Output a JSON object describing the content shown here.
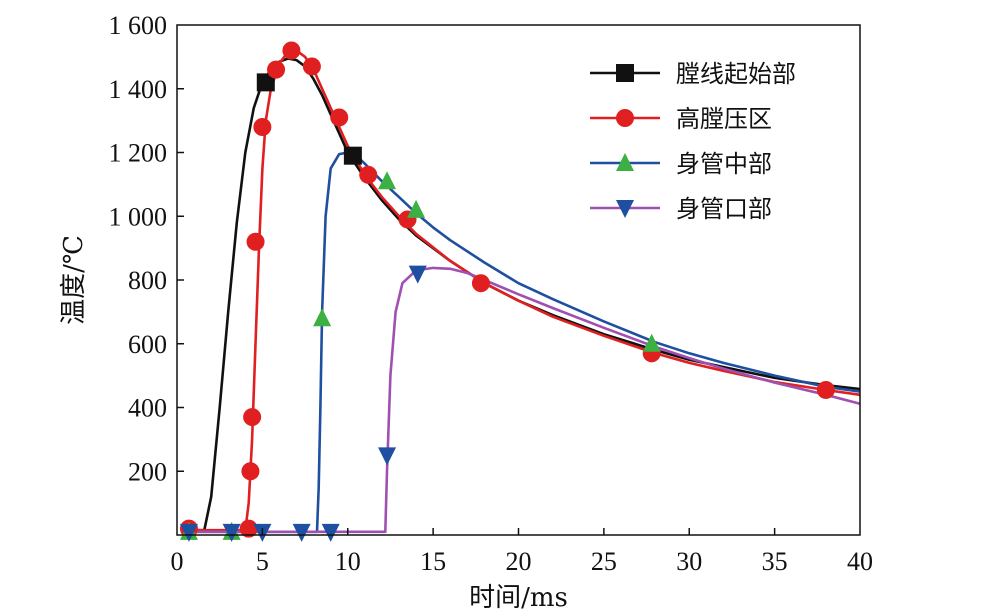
{
  "chart_data": {
    "type": "line",
    "xlabel": "时间/ms",
    "ylabel": "温度/℃",
    "xlim": [
      0,
      40
    ],
    "ylim": [
      0,
      1600
    ],
    "x_ticks": [
      0,
      5,
      10,
      15,
      20,
      25,
      30,
      35,
      40
    ],
    "x_tick_labels": [
      "0",
      "5",
      "10",
      "15",
      "20",
      "25",
      "30",
      "35",
      "40"
    ],
    "y_ticks": [
      200,
      400,
      600,
      800,
      1000,
      1200,
      1400,
      1600
    ],
    "y_tick_labels": [
      "200",
      "400",
      "600",
      "800",
      "1 000",
      "1 200",
      "1 400",
      "1 600"
    ],
    "legend_position": "top-right",
    "grid": false,
    "series": [
      {
        "name": "膛线起始部",
        "color": "#111111",
        "marker": "square",
        "curve": [
          [
            0.5,
            15
          ],
          [
            1.6,
            15
          ],
          [
            2.0,
            120
          ],
          [
            2.5,
            400
          ],
          [
            3.0,
            700
          ],
          [
            3.5,
            980
          ],
          [
            4.0,
            1200
          ],
          [
            4.5,
            1340
          ],
          [
            5.0,
            1420
          ],
          [
            5.5,
            1460
          ],
          [
            6.0,
            1485
          ],
          [
            6.5,
            1495
          ],
          [
            7.0,
            1490
          ],
          [
            7.5,
            1470
          ],
          [
            8.0,
            1430
          ],
          [
            8.5,
            1380
          ],
          [
            9.0,
            1320
          ],
          [
            9.5,
            1260
          ],
          [
            10.0,
            1200
          ],
          [
            11.0,
            1120
          ],
          [
            12.0,
            1050
          ],
          [
            13.0,
            990
          ],
          [
            14.0,
            940
          ],
          [
            16.0,
            860
          ],
          [
            18.0,
            790
          ],
          [
            20.0,
            735
          ],
          [
            22.0,
            690
          ],
          [
            25.0,
            630
          ],
          [
            28.0,
            580
          ],
          [
            30.0,
            550
          ],
          [
            32.0,
            527
          ],
          [
            35.0,
            493
          ],
          [
            38.0,
            470
          ],
          [
            40.0,
            458
          ]
        ],
        "markers": [
          [
            5.2,
            1420
          ],
          [
            10.3,
            1190
          ]
        ]
      },
      {
        "name": "高膛压区",
        "color": "#e02020",
        "marker": "circle",
        "curve": [
          [
            0.5,
            15
          ],
          [
            4.0,
            15
          ],
          [
            4.2,
            100
          ],
          [
            4.4,
            300
          ],
          [
            4.6,
            600
          ],
          [
            4.8,
            900
          ],
          [
            5.0,
            1150
          ],
          [
            5.2,
            1300
          ],
          [
            5.5,
            1400
          ],
          [
            6.0,
            1480
          ],
          [
            6.5,
            1515
          ],
          [
            7.0,
            1520
          ],
          [
            7.5,
            1500
          ],
          [
            8.0,
            1460
          ],
          [
            8.5,
            1400
          ],
          [
            9.0,
            1340
          ],
          [
            9.5,
            1280
          ],
          [
            10.0,
            1220
          ],
          [
            11.0,
            1130
          ],
          [
            12.0,
            1060
          ],
          [
            13.0,
            1000
          ],
          [
            14.0,
            945
          ],
          [
            16.0,
            860
          ],
          [
            18.0,
            790
          ],
          [
            20.0,
            735
          ],
          [
            22.0,
            685
          ],
          [
            25.0,
            625
          ],
          [
            28.0,
            570
          ],
          [
            30.0,
            540
          ],
          [
            32.0,
            515
          ],
          [
            35.0,
            480
          ],
          [
            38.0,
            455
          ],
          [
            40.0,
            440
          ]
        ],
        "markers": [
          [
            0.7,
            20
          ],
          [
            4.2,
            20
          ],
          [
            4.3,
            200
          ],
          [
            4.4,
            370
          ],
          [
            4.6,
            920
          ],
          [
            5.0,
            1280
          ],
          [
            5.8,
            1460
          ],
          [
            6.7,
            1520
          ],
          [
            7.9,
            1470
          ],
          [
            9.5,
            1310
          ],
          [
            11.2,
            1130
          ],
          [
            13.5,
            990
          ],
          [
            17.8,
            790
          ],
          [
            27.8,
            570
          ],
          [
            38.0,
            455
          ]
        ]
      },
      {
        "name": "身管中部",
        "color": "#1f4fa0",
        "marker": "triangle-up",
        "marker_color": "#3cb043",
        "curve": [
          [
            0.5,
            10
          ],
          [
            8.2,
            10
          ],
          [
            8.3,
            150
          ],
          [
            8.4,
            400
          ],
          [
            8.5,
            700
          ],
          [
            8.7,
            1000
          ],
          [
            9.0,
            1150
          ],
          [
            9.5,
            1195
          ],
          [
            10.0,
            1200
          ],
          [
            10.5,
            1190
          ],
          [
            11.0,
            1165
          ],
          [
            12.0,
            1110
          ],
          [
            13.0,
            1060
          ],
          [
            14.0,
            1010
          ],
          [
            15.0,
            965
          ],
          [
            16.0,
            925
          ],
          [
            18.0,
            855
          ],
          [
            20.0,
            790
          ],
          [
            22.0,
            740
          ],
          [
            25.0,
            670
          ],
          [
            28.0,
            605
          ],
          [
            30.0,
            570
          ],
          [
            32.0,
            540
          ],
          [
            35.0,
            500
          ],
          [
            38.0,
            465
          ],
          [
            40.0,
            450
          ]
        ],
        "markers": [
          [
            0.7,
            10
          ],
          [
            3.2,
            10
          ],
          [
            8.5,
            680
          ],
          [
            12.3,
            1110
          ],
          [
            14.0,
            1020
          ],
          [
            27.8,
            600
          ]
        ]
      },
      {
        "name": "身管口部",
        "color": "#a050b0",
        "marker": "triangle-down",
        "marker_color": "#1f4fa0",
        "curve": [
          [
            0.5,
            10
          ],
          [
            12.2,
            10
          ],
          [
            12.3,
            200
          ],
          [
            12.5,
            500
          ],
          [
            12.8,
            700
          ],
          [
            13.2,
            790
          ],
          [
            14.0,
            830
          ],
          [
            15.0,
            838
          ],
          [
            16.0,
            835
          ],
          [
            17.0,
            822
          ],
          [
            18.0,
            800
          ],
          [
            20.0,
            755
          ],
          [
            22.0,
            712
          ],
          [
            25.0,
            650
          ],
          [
            28.0,
            590
          ],
          [
            30.0,
            555
          ],
          [
            32.0,
            522
          ],
          [
            35.0,
            478
          ],
          [
            38.0,
            440
          ],
          [
            40.0,
            412
          ]
        ],
        "markers": [
          [
            0.7,
            10
          ],
          [
            3.2,
            10
          ],
          [
            5.0,
            10
          ],
          [
            7.3,
            10
          ],
          [
            9.0,
            10
          ],
          [
            12.3,
            250
          ],
          [
            14.1,
            820
          ]
        ]
      }
    ]
  }
}
